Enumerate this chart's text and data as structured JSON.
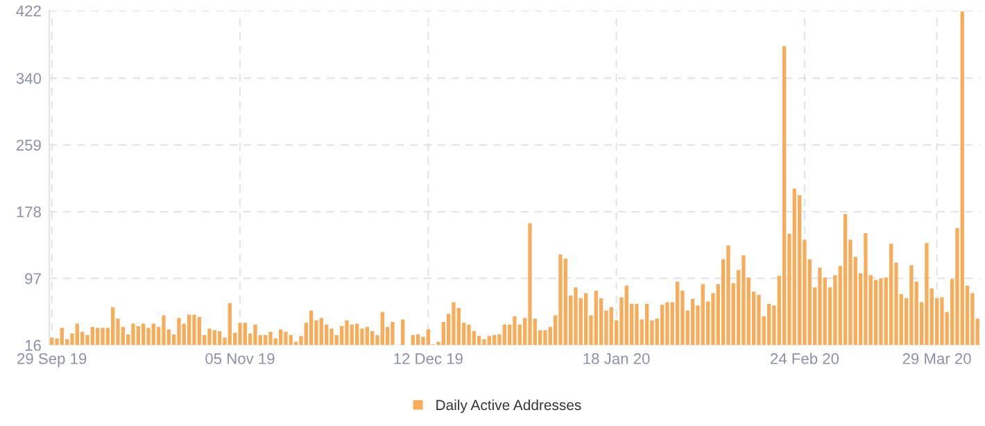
{
  "chart_data": {
    "type": "bar",
    "categories": [
      "29 Sep 19",
      null,
      null,
      null,
      null,
      null,
      null,
      null,
      null,
      null,
      null,
      null,
      null,
      null,
      null,
      null,
      null,
      null,
      null,
      null,
      null,
      null,
      null,
      null,
      null,
      null,
      null,
      null,
      null,
      null,
      null,
      null,
      null,
      null,
      null,
      null,
      null,
      "05 Nov 19",
      null,
      null,
      null,
      null,
      null,
      null,
      null,
      null,
      null,
      null,
      null,
      null,
      null,
      null,
      null,
      null,
      null,
      null,
      null,
      null,
      null,
      null,
      null,
      null,
      null,
      null,
      null,
      null,
      null,
      null,
      null,
      null,
      null,
      null,
      null,
      null,
      "12 Dec 19",
      null,
      null,
      null,
      null,
      null,
      null,
      null,
      null,
      null,
      null,
      null,
      null,
      null,
      null,
      null,
      null,
      null,
      null,
      null,
      null,
      null,
      null,
      null,
      null,
      null,
      null,
      null,
      null,
      null,
      null,
      null,
      null,
      null,
      null,
      null,
      null,
      "18 Jan 20",
      null,
      null,
      null,
      null,
      null,
      null,
      null,
      null,
      null,
      null,
      null,
      null,
      null,
      null,
      null,
      null,
      null,
      null,
      null,
      null,
      null,
      null,
      null,
      null,
      null,
      null,
      null,
      null,
      null,
      null,
      null,
      null,
      null,
      null,
      null,
      null,
      "24 Feb 20",
      null,
      null,
      null,
      null,
      null,
      null,
      null,
      null,
      null,
      null,
      null,
      null,
      null,
      null,
      null,
      null,
      null,
      null,
      null,
      null,
      null,
      null,
      null,
      null,
      null,
      "29 Mar 20",
      null,
      null,
      null,
      null,
      null,
      null,
      null,
      null
    ],
    "series": [
      {
        "name": "Daily Active Addresses",
        "color": "#f8ac59",
        "values": [
          25,
          24,
          37,
          23,
          30,
          42,
          32,
          28,
          38,
          37,
          37,
          37,
          62,
          48,
          38,
          29,
          42,
          39,
          42,
          37,
          42,
          38,
          52,
          35,
          29,
          49,
          42,
          53,
          53,
          50,
          28,
          36,
          34,
          33,
          25,
          67,
          31,
          43,
          43,
          30,
          41,
          28,
          28,
          32,
          24,
          35,
          32,
          28,
          20,
          27,
          43,
          58,
          46,
          49,
          41,
          36,
          28,
          39,
          46,
          41,
          42,
          36,
          38,
          33,
          28,
          56,
          38,
          44,
          null,
          47,
          null,
          28,
          29,
          26,
          35,
          17,
          20,
          44,
          54,
          68,
          61,
          43,
          41,
          33,
          27,
          23,
          27,
          28,
          29,
          41,
          41,
          51,
          41,
          49,
          164,
          48,
          34,
          34,
          38,
          52,
          126,
          121,
          76,
          86,
          73,
          79,
          52,
          82,
          73,
          58,
          62,
          46,
          74,
          88,
          66,
          66,
          47,
          66,
          46,
          48,
          65,
          68,
          68,
          93,
          82,
          58,
          72,
          64,
          90,
          69,
          79,
          90,
          120,
          137,
          91,
          107,
          125,
          98,
          81,
          77,
          51,
          66,
          64,
          100,
          379,
          151,
          206,
          198,
          144,
          120,
          86,
          110,
          98,
          86,
          101,
          112,
          175,
          144,
          123,
          103,
          152,
          101,
          95,
          97,
          98,
          139,
          116,
          78,
          73,
          113,
          93,
          68,
          140,
          85,
          73,
          74,
          56,
          96,
          158,
          421,
          88,
          79,
          48
        ]
      }
    ],
    "ylim": [
      16,
      422
    ],
    "yticks": [
      16,
      97,
      178,
      259,
      340,
      422
    ],
    "grid": true,
    "legend": "bottom"
  }
}
